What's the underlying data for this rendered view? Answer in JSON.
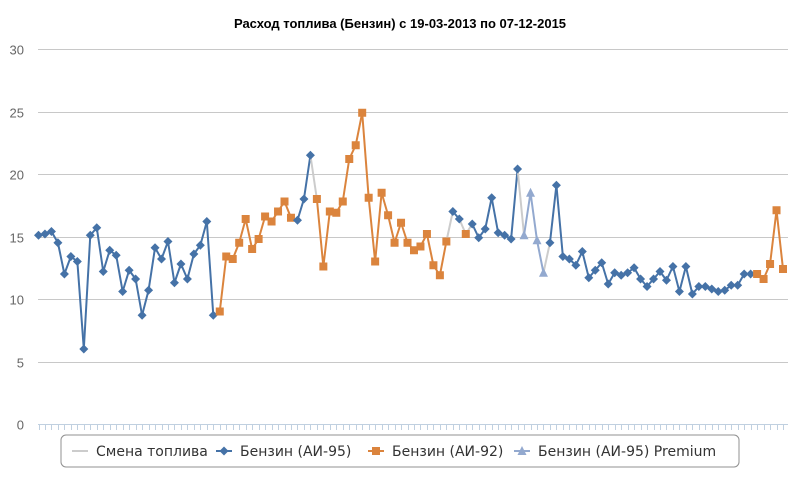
{
  "chart_data": {
    "type": "line",
    "title": "Расход топлива (Бензин) с 19-03-2013 по 07-12-2015",
    "xlabel": "",
    "ylabel": "",
    "ylim": [
      0,
      30
    ],
    "yticks": [
      0,
      5,
      10,
      15,
      20,
      25,
      30
    ],
    "grid": true,
    "legend_position": "bottom",
    "x": [
      1,
      2,
      3,
      4,
      5,
      6,
      7,
      8,
      9,
      10,
      11,
      12,
      13,
      14,
      15,
      16,
      17,
      18,
      19,
      20,
      21,
      22,
      23,
      24,
      25,
      26,
      27,
      28,
      29,
      30,
      31,
      32,
      33,
      34,
      35,
      36,
      37,
      38,
      39,
      40,
      41,
      42,
      43,
      44,
      45,
      46,
      47,
      48,
      49,
      50,
      51,
      52,
      53,
      54,
      55,
      56,
      57,
      58,
      59,
      60,
      61,
      62,
      63,
      64,
      65,
      66,
      67,
      68,
      69,
      70,
      71,
      72,
      73,
      74,
      75,
      76,
      77,
      78,
      79,
      80,
      81,
      82,
      83,
      84,
      85,
      86,
      87,
      88,
      89,
      90,
      91,
      92,
      93,
      94,
      95,
      96,
      97,
      98,
      99,
      100,
      101,
      102,
      103,
      104,
      105,
      106,
      107,
      108,
      109,
      110,
      111,
      112,
      113,
      114,
      115,
      116
    ],
    "values": [
      15.1,
      15.2,
      15.4,
      14.5,
      12.0,
      13.4,
      13.0,
      6.0,
      15.1,
      15.7,
      12.2,
      13.9,
      13.5,
      10.6,
      12.3,
      11.6,
      8.7,
      10.7,
      14.1,
      13.2,
      14.6,
      11.3,
      12.8,
      11.6,
      13.6,
      14.3,
      16.2,
      8.7,
      9.0,
      13.4,
      13.2,
      14.5,
      16.4,
      14.0,
      14.8,
      16.6,
      16.2,
      17.0,
      17.8,
      16.5,
      16.3,
      18.0,
      21.5,
      18.0,
      12.6,
      17.0,
      16.9,
      17.8,
      21.2,
      22.3,
      24.9,
      18.1,
      13.0,
      18.5,
      16.7,
      14.5,
      16.1,
      14.5,
      13.9,
      14.2,
      15.2,
      12.7,
      11.9,
      14.6,
      17.0,
      16.4,
      15.2,
      16.0,
      14.9,
      15.6,
      18.1,
      15.3,
      15.1,
      14.8,
      20.4,
      15.1,
      18.5,
      14.7,
      12.1,
      14.5,
      19.1,
      13.4,
      13.2,
      12.7,
      13.8,
      11.7,
      12.3,
      12.9,
      11.2,
      12.1,
      11.9,
      12.1,
      12.5,
      11.6,
      11.0,
      11.6,
      12.2,
      11.5,
      12.6,
      10.6,
      12.6,
      10.4,
      11.0,
      11.0,
      10.8,
      10.6,
      10.7,
      11.1,
      11.1,
      12.0,
      12.0,
      12.0,
      11.6,
      12.8,
      17.1,
      12.4
    ],
    "fuel_codes": [
      "a95",
      "a95",
      "a95",
      "a95",
      "a95",
      "a95",
      "a95",
      "a95",
      "a95",
      "a95",
      "a95",
      "a95",
      "a95",
      "a95",
      "a95",
      "a95",
      "a95",
      "a95",
      "a95",
      "a95",
      "a95",
      "a95",
      "a95",
      "a95",
      "a95",
      "a95",
      "a95",
      "a95",
      "a92",
      "a92",
      "a92",
      "a92",
      "a92",
      "a92",
      "a92",
      "a92",
      "a92",
      "a92",
      "a92",
      "a92",
      "a95",
      "a95",
      "a95",
      "a92",
      "a92",
      "a92",
      "a92",
      "a92",
      "a92",
      "a92",
      "a92",
      "a92",
      "a92",
      "a92",
      "a92",
      "a92",
      "a92",
      "a92",
      "a92",
      "a92",
      "a92",
      "a92",
      "a92",
      "a92",
      "a95",
      "a95",
      "a92",
      "a95",
      "a95",
      "a95",
      "a95",
      "a95",
      "a95",
      "a95",
      "a95",
      "a95p",
      "a95p",
      "a95p",
      "a95p",
      "a95",
      "a95",
      "a95",
      "a95",
      "a95",
      "a95",
      "a95",
      "a95",
      "a95",
      "a95",
      "a95",
      "a95",
      "a95",
      "a95",
      "a95",
      "a95",
      "a95",
      "a95",
      "a95",
      "a95",
      "a95",
      "a95",
      "a95",
      "a95",
      "a95",
      "a95",
      "a95",
      "a95",
      "a95",
      "a95",
      "a95",
      "a95",
      "a92",
      "a92",
      "a92",
      "a92",
      "a92"
    ],
    "series": [
      {
        "code": "change",
        "name": "Смена топлива",
        "color": "#cccccc",
        "marker": "none"
      },
      {
        "code": "a95",
        "name": "Бензин (АИ-95)",
        "color": "#4572a7",
        "marker": "diamond"
      },
      {
        "code": "a92",
        "name": "Бензин (АИ-92)",
        "color": "#db843d",
        "marker": "square"
      },
      {
        "code": "a95p",
        "name": "Бензин (АИ-95) Premium",
        "color": "#93a9cf",
        "marker": "triangle"
      }
    ]
  }
}
